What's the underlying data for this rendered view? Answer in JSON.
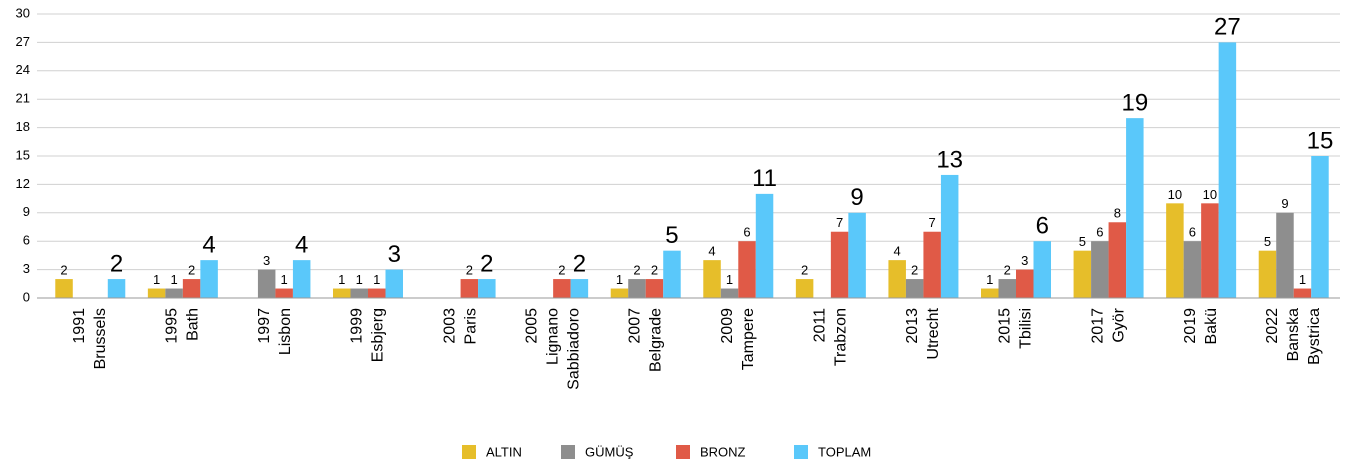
{
  "chart_data": {
    "type": "bar",
    "categories": [
      [
        "1991",
        "Brussels"
      ],
      [
        "1995",
        "Bath"
      ],
      [
        "1997",
        "Lisbon"
      ],
      [
        "1999",
        "Esbjerg"
      ],
      [
        "2003",
        "Paris"
      ],
      [
        "2005",
        "Lignano",
        "Sabbiadoro"
      ],
      [
        "2007",
        "Belgrade"
      ],
      [
        "2009",
        "Tampere"
      ],
      [
        "2011",
        "Trabzon"
      ],
      [
        "2013",
        "Utrecht"
      ],
      [
        "2015",
        "Tbilisi"
      ],
      [
        "2017",
        "Györ"
      ],
      [
        "2019",
        "Bakü"
      ],
      [
        "2022",
        "Banska",
        "Bystrica"
      ]
    ],
    "series": [
      {
        "name": "ALTIN",
        "color": "#e6be2a",
        "values": [
          2,
          1,
          null,
          1,
          null,
          null,
          1,
          4,
          2,
          4,
          1,
          5,
          10,
          5
        ]
      },
      {
        "name": "GÜMÜŞ",
        "color": "#8e8e8e",
        "values": [
          null,
          1,
          3,
          1,
          null,
          null,
          2,
          1,
          null,
          2,
          2,
          6,
          6,
          9
        ]
      },
      {
        "name": "BRONZ",
        "color": "#e05a47",
        "values": [
          null,
          2,
          1,
          1,
          2,
          2,
          2,
          6,
          7,
          7,
          3,
          8,
          10,
          1
        ]
      },
      {
        "name": "TOPLAM",
        "color": "#5ac8fa",
        "values": [
          2,
          4,
          4,
          3,
          2,
          2,
          5,
          11,
          9,
          13,
          6,
          19,
          27,
          15
        ]
      }
    ],
    "ylim": [
      0,
      30
    ],
    "yticks": [
      0,
      3,
      6,
      9,
      12,
      15,
      18,
      21,
      24,
      27,
      30
    ],
    "grid": true,
    "legend": "bottom"
  }
}
